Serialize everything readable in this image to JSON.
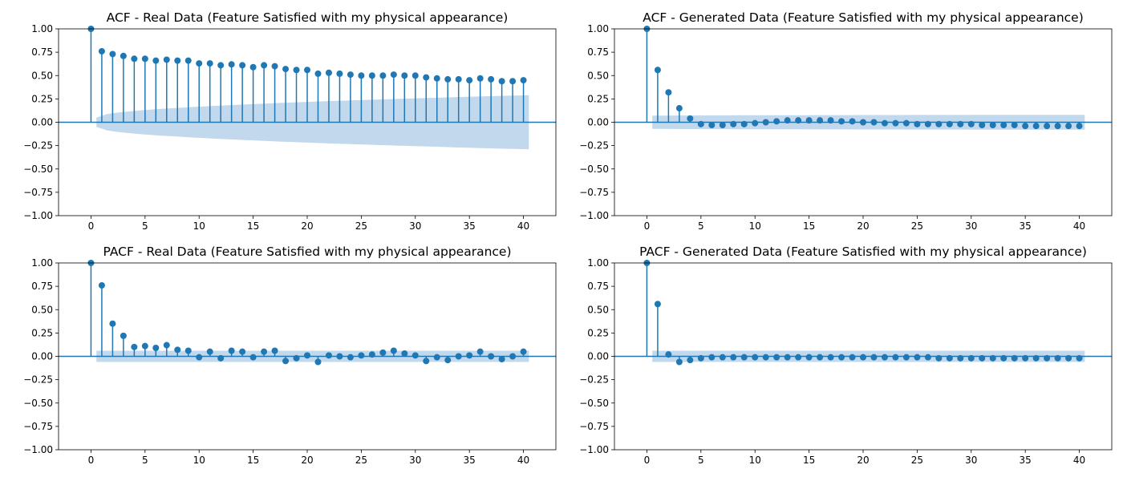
{
  "colors": {
    "marker": "#1f77b4",
    "confidence_band": "#c2d8ec",
    "axis": "#000000",
    "background": "#ffffff"
  },
  "chart_data": [
    {
      "type": "stem",
      "title": "ACF - Real Data (Feature Satisfied with my physical appearance)",
      "xlim": [
        -3,
        43
      ],
      "ylim": [
        -1.0,
        1.0
      ],
      "xticks": [
        0,
        5,
        10,
        15,
        20,
        25,
        30,
        35,
        40
      ],
      "yticks": [
        -1.0,
        -0.75,
        -0.5,
        -0.25,
        0.0,
        0.25,
        0.5,
        0.75,
        1.0
      ],
      "xtick_labels": [
        "0",
        "5",
        "10",
        "15",
        "20",
        "25",
        "30",
        "35",
        "40"
      ],
      "ytick_labels": [
        "−1.00",
        "−0.75",
        "−0.50",
        "−0.25",
        "0.00",
        "0.25",
        "0.50",
        "0.75",
        "1.00"
      ],
      "lags": [
        0,
        1,
        2,
        3,
        4,
        5,
        6,
        7,
        8,
        9,
        10,
        11,
        12,
        13,
        14,
        15,
        16,
        17,
        18,
        19,
        20,
        21,
        22,
        23,
        24,
        25,
        26,
        27,
        28,
        29,
        30,
        31,
        32,
        33,
        34,
        35,
        36,
        37,
        38,
        39,
        40
      ],
      "values": [
        1.0,
        0.76,
        0.73,
        0.71,
        0.68,
        0.68,
        0.66,
        0.67,
        0.66,
        0.66,
        0.63,
        0.63,
        0.61,
        0.62,
        0.61,
        0.59,
        0.61,
        0.6,
        0.57,
        0.56,
        0.56,
        0.52,
        0.53,
        0.52,
        0.51,
        0.5,
        0.5,
        0.5,
        0.51,
        0.5,
        0.5,
        0.48,
        0.47,
        0.46,
        0.46,
        0.45,
        0.47,
        0.46,
        0.44,
        0.44,
        0.45
      ],
      "confidence_band": {
        "start": 0.05,
        "end": 0.29
      }
    },
    {
      "type": "stem",
      "title": "ACF - Generated Data (Feature Satisfied with my physical appearance)",
      "xlim": [
        -3,
        43
      ],
      "ylim": [
        -1.0,
        1.0
      ],
      "xticks": [
        0,
        5,
        10,
        15,
        20,
        25,
        30,
        35,
        40
      ],
      "yticks": [
        -1.0,
        -0.75,
        -0.5,
        -0.25,
        0.0,
        0.25,
        0.5,
        0.75,
        1.0
      ],
      "xtick_labels": [
        "0",
        "5",
        "10",
        "15",
        "20",
        "25",
        "30",
        "35",
        "40"
      ],
      "ytick_labels": [
        "−1.00",
        "−0.75",
        "−0.50",
        "−0.25",
        "0.00",
        "0.25",
        "0.50",
        "0.75",
        "1.00"
      ],
      "lags": [
        0,
        1,
        2,
        3,
        4,
        5,
        6,
        7,
        8,
        9,
        10,
        11,
        12,
        13,
        14,
        15,
        16,
        17,
        18,
        19,
        20,
        21,
        22,
        23,
        24,
        25,
        26,
        27,
        28,
        29,
        30,
        31,
        32,
        33,
        34,
        35,
        36,
        37,
        38,
        39,
        40
      ],
      "values": [
        1.0,
        0.56,
        0.32,
        0.15,
        0.04,
        -0.02,
        -0.03,
        -0.03,
        -0.02,
        -0.02,
        -0.01,
        0.0,
        0.01,
        0.02,
        0.02,
        0.02,
        0.02,
        0.02,
        0.01,
        0.01,
        0.0,
        0.0,
        -0.01,
        -0.01,
        -0.01,
        -0.02,
        -0.02,
        -0.02,
        -0.02,
        -0.02,
        -0.02,
        -0.03,
        -0.03,
        -0.03,
        -0.03,
        -0.04,
        -0.04,
        -0.04,
        -0.04,
        -0.04,
        -0.04
      ],
      "confidence_band": {
        "start": 0.07,
        "end": 0.08
      }
    },
    {
      "type": "stem",
      "title": "PACF - Real Data (Feature Satisfied with my physical appearance)",
      "xlim": [
        -3,
        43
      ],
      "ylim": [
        -1.0,
        1.0
      ],
      "xticks": [
        0,
        5,
        10,
        15,
        20,
        25,
        30,
        35,
        40
      ],
      "yticks": [
        -1.0,
        -0.75,
        -0.5,
        -0.25,
        0.0,
        0.25,
        0.5,
        0.75,
        1.0
      ],
      "xtick_labels": [
        "0",
        "5",
        "10",
        "15",
        "20",
        "25",
        "30",
        "35",
        "40"
      ],
      "ytick_labels": [
        "−1.00",
        "−0.75",
        "−0.50",
        "−0.25",
        "0.00",
        "0.25",
        "0.50",
        "0.75",
        "1.00"
      ],
      "lags": [
        0,
        1,
        2,
        3,
        4,
        5,
        6,
        7,
        8,
        9,
        10,
        11,
        12,
        13,
        14,
        15,
        16,
        17,
        18,
        19,
        20,
        21,
        22,
        23,
        24,
        25,
        26,
        27,
        28,
        29,
        30,
        31,
        32,
        33,
        34,
        35,
        36,
        37,
        38,
        39,
        40
      ],
      "values": [
        1.0,
        0.76,
        0.35,
        0.22,
        0.1,
        0.11,
        0.09,
        0.12,
        0.07,
        0.06,
        -0.01,
        0.05,
        -0.02,
        0.06,
        0.05,
        -0.01,
        0.05,
        0.06,
        -0.05,
        -0.02,
        0.01,
        -0.06,
        0.01,
        0.0,
        -0.01,
        0.01,
        0.02,
        0.04,
        0.06,
        0.03,
        0.01,
        -0.05,
        -0.01,
        -0.04,
        0.0,
        0.01,
        0.05,
        0.0,
        -0.03,
        0.0,
        0.05
      ],
      "confidence_band": {
        "start": 0.06,
        "end": 0.06
      }
    },
    {
      "type": "stem",
      "title": "PACF - Generated Data (Feature Satisfied with my physical appearance)",
      "xlim": [
        -3,
        43
      ],
      "ylim": [
        -1.0,
        1.0
      ],
      "xticks": [
        0,
        5,
        10,
        15,
        20,
        25,
        30,
        35,
        40
      ],
      "yticks": [
        -1.0,
        -0.75,
        -0.5,
        -0.25,
        0.0,
        0.25,
        0.5,
        0.75,
        1.0
      ],
      "xtick_labels": [
        "0",
        "5",
        "10",
        "15",
        "20",
        "25",
        "30",
        "35",
        "40"
      ],
      "ytick_labels": [
        "−1.00",
        "−0.75",
        "−0.50",
        "−0.25",
        "0.00",
        "0.25",
        "0.50",
        "0.75",
        "1.00"
      ],
      "lags": [
        0,
        1,
        2,
        3,
        4,
        5,
        6,
        7,
        8,
        9,
        10,
        11,
        12,
        13,
        14,
        15,
        16,
        17,
        18,
        19,
        20,
        21,
        22,
        23,
        24,
        25,
        26,
        27,
        28,
        29,
        30,
        31,
        32,
        33,
        34,
        35,
        36,
        37,
        38,
        39,
        40
      ],
      "values": [
        1.0,
        0.56,
        0.02,
        -0.06,
        -0.04,
        -0.02,
        -0.01,
        -0.01,
        -0.01,
        -0.01,
        -0.01,
        -0.01,
        -0.01,
        -0.01,
        -0.01,
        -0.01,
        -0.01,
        -0.01,
        -0.01,
        -0.01,
        -0.01,
        -0.01,
        -0.01,
        -0.01,
        -0.01,
        -0.01,
        -0.01,
        -0.02,
        -0.02,
        -0.02,
        -0.02,
        -0.02,
        -0.02,
        -0.02,
        -0.02,
        -0.02,
        -0.02,
        -0.02,
        -0.02,
        -0.02,
        -0.02
      ],
      "confidence_band": {
        "start": 0.06,
        "end": 0.06
      }
    }
  ]
}
